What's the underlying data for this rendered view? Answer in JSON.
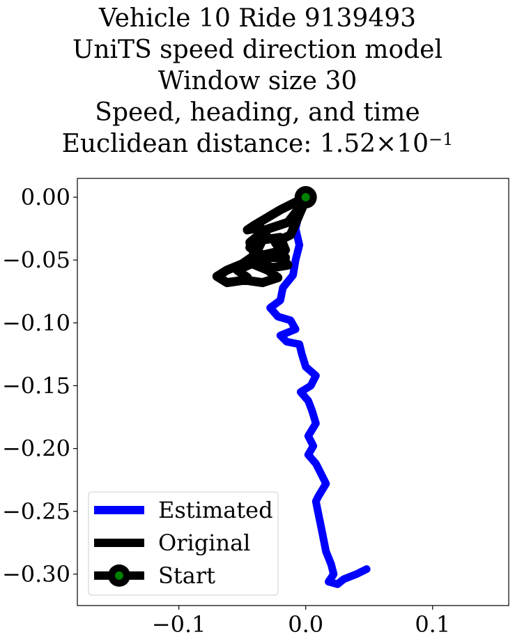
{
  "title_lines": [
    "Vehicle 10 Ride 9139493",
    "UniTS speed direction model",
    "Window size 30",
    "Speed, heading, and time"
  ],
  "distance_label": {
    "prefix": "Euclidean distance: ",
    "mantissa": "1.52",
    "times": "×",
    "base": "10",
    "exponent": "−1"
  },
  "chart_data": {
    "type": "line",
    "xlim": [
      -0.18,
      0.16
    ],
    "ylim": [
      -0.325,
      0.015
    ],
    "grid": false,
    "legend_placement": "lower-left",
    "x_ticks": [
      {
        "value": -0.1,
        "label": "−0.1"
      },
      {
        "value": 0.0,
        "label": "0.0"
      },
      {
        "value": 0.1,
        "label": "0.1"
      }
    ],
    "y_ticks": [
      {
        "value": 0.0,
        "label": "0.00"
      },
      {
        "value": -0.05,
        "label": "−0.05"
      },
      {
        "value": -0.1,
        "label": "−0.10"
      },
      {
        "value": -0.15,
        "label": "−0.15"
      },
      {
        "value": -0.2,
        "label": "−0.20"
      },
      {
        "value": -0.25,
        "label": "−0.25"
      },
      {
        "value": -0.3,
        "label": "−0.30"
      }
    ],
    "series": [
      {
        "name": "Estimated",
        "color": "#0000ff",
        "points": [
          [
            0.0,
            0.0
          ],
          [
            -0.005,
            -0.012
          ],
          [
            -0.008,
            -0.025
          ],
          [
            -0.005,
            -0.038
          ],
          [
            -0.008,
            -0.05
          ],
          [
            -0.01,
            -0.062
          ],
          [
            -0.018,
            -0.072
          ],
          [
            -0.02,
            -0.082
          ],
          [
            -0.028,
            -0.088
          ],
          [
            -0.022,
            -0.095
          ],
          [
            -0.012,
            -0.098
          ],
          [
            -0.008,
            -0.105
          ],
          [
            -0.02,
            -0.11
          ],
          [
            -0.015,
            -0.115
          ],
          [
            -0.005,
            -0.117
          ],
          [
            -0.003,
            -0.125
          ],
          [
            0.0,
            -0.135
          ],
          [
            0.008,
            -0.142
          ],
          [
            0.004,
            -0.15
          ],
          [
            -0.004,
            -0.155
          ],
          [
            0.002,
            -0.162
          ],
          [
            0.005,
            -0.17
          ],
          [
            0.008,
            -0.18
          ],
          [
            0.002,
            -0.19
          ],
          [
            0.006,
            -0.198
          ],
          [
            0.002,
            -0.205
          ],
          [
            0.008,
            -0.212
          ],
          [
            0.012,
            -0.22
          ],
          [
            0.016,
            -0.228
          ],
          [
            0.01,
            -0.238
          ],
          [
            0.008,
            -0.242
          ],
          [
            0.01,
            -0.252
          ],
          [
            0.012,
            -0.262
          ],
          [
            0.014,
            -0.272
          ],
          [
            0.016,
            -0.282
          ],
          [
            0.02,
            -0.292
          ],
          [
            0.022,
            -0.3
          ],
          [
            0.018,
            -0.306
          ],
          [
            0.025,
            -0.308
          ],
          [
            0.03,
            -0.304
          ],
          [
            0.04,
            -0.3
          ],
          [
            0.048,
            -0.296
          ]
        ]
      },
      {
        "name": "Original",
        "color": "#000000",
        "points": [
          [
            0.0,
            0.0
          ],
          [
            -0.02,
            -0.01
          ],
          [
            -0.04,
            -0.022
          ],
          [
            -0.046,
            -0.026
          ],
          [
            -0.036,
            -0.024
          ],
          [
            -0.03,
            -0.032
          ],
          [
            -0.044,
            -0.04
          ],
          [
            -0.034,
            -0.046
          ],
          [
            -0.016,
            -0.042
          ],
          [
            -0.02,
            -0.032
          ],
          [
            -0.034,
            -0.034
          ],
          [
            -0.04,
            -0.046
          ],
          [
            -0.05,
            -0.053
          ],
          [
            -0.062,
            -0.058
          ],
          [
            -0.07,
            -0.063
          ],
          [
            -0.062,
            -0.068
          ],
          [
            -0.048,
            -0.066
          ],
          [
            -0.034,
            -0.068
          ],
          [
            -0.022,
            -0.064
          ],
          [
            -0.03,
            -0.058
          ],
          [
            -0.042,
            -0.053
          ],
          [
            -0.03,
            -0.048
          ],
          [
            -0.016,
            -0.048
          ],
          [
            -0.024,
            -0.036
          ],
          [
            -0.012,
            -0.03
          ],
          [
            0.0,
            -0.002
          ],
          [
            -0.014,
            -0.02
          ],
          [
            -0.032,
            -0.026
          ],
          [
            -0.044,
            -0.036
          ],
          [
            -0.038,
            -0.052
          ],
          [
            -0.026,
            -0.056
          ],
          [
            -0.014,
            -0.054
          ],
          [
            -0.02,
            -0.046
          ],
          [
            -0.036,
            -0.05
          ],
          [
            -0.054,
            -0.058
          ],
          [
            -0.046,
            -0.064
          ]
        ]
      }
    ],
    "start_marker": {
      "x": 0.0,
      "y": 0.0,
      "outer_color": "#000000",
      "inner_color": "#008000"
    },
    "legend": [
      {
        "label": "Estimated",
        "style": "line",
        "color": "#0000ff"
      },
      {
        "label": "Original",
        "style": "line",
        "color": "#000000"
      },
      {
        "label": "Start",
        "style": "marker-line",
        "color": "#000000",
        "marker_color": "#008000"
      }
    ]
  }
}
